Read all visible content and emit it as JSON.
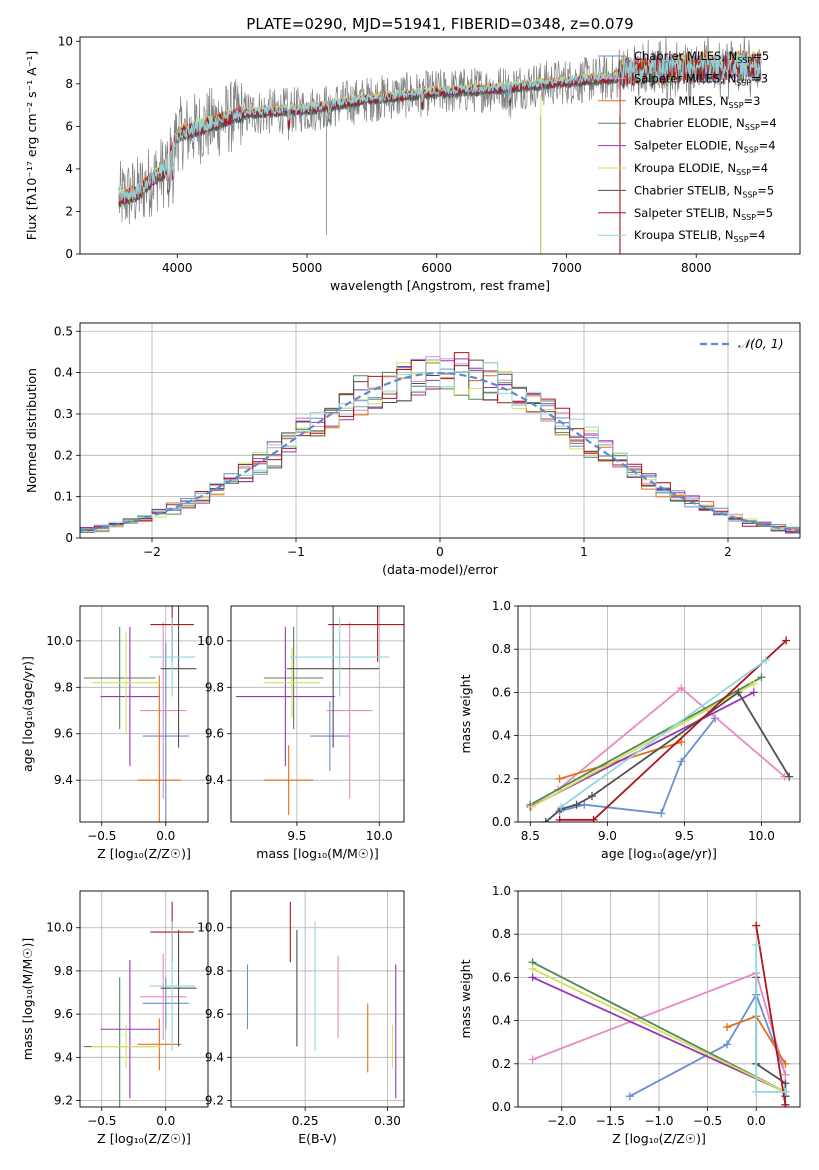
{
  "figure_title": "PLATE=0290, MJD=51941, FIBERID=0348, z=0.079",
  "models": [
    {
      "name": "Chabrier MILES",
      "color": "#6a8fd4",
      "nssp": "5"
    },
    {
      "name": "Salpeter MILES",
      "color": "#e88ac4",
      "nssp": "3"
    },
    {
      "name": "Kroupa MILES",
      "color": "#e0701c",
      "nssp": "3"
    },
    {
      "name": "Chabrier ELODIE",
      "color": "#4f8a55",
      "nssp": "4"
    },
    {
      "name": "Salpeter ELODIE",
      "color": "#9b35b8",
      "nssp": "4"
    },
    {
      "name": "Kroupa ELODIE",
      "color": "#d6e05a",
      "nssp": "4"
    },
    {
      "name": "Chabrier STELIB",
      "color": "#505050",
      "nssp": "5"
    },
    {
      "name": "Salpeter STELIB",
      "color": "#b0141c",
      "nssp": "5"
    },
    {
      "name": "Kroupa STELIB",
      "color": "#8fd8e0",
      "nssp": "4"
    }
  ],
  "chart_data": [
    {
      "type": "line",
      "id": "spectrum",
      "xlabel": "wavelength [Angstrom, rest frame]",
      "ylabel": "Flux [fλ10⁻¹⁷ erg cm⁻² s⁻¹ A⁻¹]",
      "xlim": [
        3250,
        8800
      ],
      "ylim": [
        0,
        10.2
      ],
      "xticks": [
        4000,
        5000,
        6000,
        7000,
        8000
      ],
      "yticks": [
        0,
        2,
        4,
        6,
        8,
        10
      ],
      "legend": "right",
      "continuum": {
        "x": [
          3550,
          3700,
          3800,
          3900,
          4000,
          4200,
          4500,
          5000,
          5500,
          6000,
          6500,
          7000,
          7400,
          8000,
          8500
        ],
        "y": [
          2.6,
          2.9,
          3.5,
          3.9,
          5.6,
          6.0,
          6.6,
          6.8,
          7.3,
          7.6,
          7.8,
          8.1,
          8.3,
          8.5,
          8.6
        ]
      }
    },
    {
      "type": "line",
      "id": "residuals",
      "xlabel": "(data-model)/error",
      "ylabel": "Normed distribution",
      "xlim": [
        -2.5,
        2.5
      ],
      "ylim": [
        0,
        0.52
      ],
      "xticks": [
        -2,
        -1,
        0,
        1,
        2
      ],
      "yticks": [
        0,
        0.1,
        0.2,
        0.3,
        0.4,
        0.5
      ],
      "legend_label": "𝒩(0, 1)",
      "legend": "top-right"
    },
    {
      "type": "scatter",
      "id": "age_vs_Z",
      "xlabel": "Z [log₁₀(Z/Z☉)]",
      "ylabel": "age  [log₁₀(age/yr)]",
      "xlim": [
        -0.67,
        0.33
      ],
      "ylim": [
        9.22,
        10.15
      ],
      "xticks": [
        -0.5,
        0.0
      ],
      "yticks": [
        9.4,
        9.6,
        9.8,
        10.0
      ],
      "points": [
        {
          "model": 0,
          "x": 0.0,
          "xe": 0.18,
          "y": 9.59,
          "ye": 0.4
        },
        {
          "model": 1,
          "x": -0.02,
          "xe": 0.18,
          "y": 9.7,
          "ye": 0.38
        },
        {
          "model": 2,
          "x": -0.05,
          "xe": 0.17,
          "y": 9.4,
          "ye": 0.45
        },
        {
          "model": 3,
          "x": -0.36,
          "xe": 0.28,
          "y": 9.84,
          "ye": 0.22
        },
        {
          "model": 4,
          "x": -0.28,
          "xe": 0.23,
          "y": 9.76,
          "ye": 0.3
        },
        {
          "model": 5,
          "x": -0.31,
          "xe": 0.27,
          "y": 9.82,
          "ye": 0.22
        },
        {
          "model": 6,
          "x": 0.1,
          "xe": 0.14,
          "y": 9.88,
          "ye": 0.34
        },
        {
          "model": 7,
          "x": 0.05,
          "xe": 0.17,
          "y": 10.07,
          "ye": 0.16
        },
        {
          "model": 8,
          "x": 0.05,
          "xe": 0.18,
          "y": 9.93,
          "ye": 0.17
        }
      ]
    },
    {
      "type": "scatter",
      "id": "age_vs_mass",
      "xlabel": "mass [log₁₀(M/M☉)]",
      "ylabel": "",
      "xlim": [
        9.1,
        10.15
      ],
      "ylim": [
        9.22,
        10.15
      ],
      "xticks": [
        9.5,
        10.0
      ],
      "yticks": [
        9.4,
        9.6,
        9.8,
        10.0
      ],
      "points": [
        {
          "model": 0,
          "x": 9.7,
          "xe": 0.12,
          "y": 9.59,
          "ye": 0.15
        },
        {
          "model": 1,
          "x": 9.82,
          "xe": 0.14,
          "y": 9.7,
          "ye": 0.38
        },
        {
          "model": 2,
          "x": 9.45,
          "xe": 0.15,
          "y": 9.4,
          "ye": 0.15
        },
        {
          "model": 3,
          "x": 9.48,
          "xe": 0.18,
          "y": 9.84,
          "ye": 0.22
        },
        {
          "model": 4,
          "x": 9.43,
          "xe": 0.3,
          "y": 9.76,
          "ye": 0.3
        },
        {
          "model": 5,
          "x": 9.47,
          "xe": 0.17,
          "y": 9.82,
          "ye": 0.15
        },
        {
          "model": 6,
          "x": 9.72,
          "xe": 0.28,
          "y": 9.88,
          "ye": 0.34
        },
        {
          "model": 7,
          "x": 9.99,
          "xe": 0.3,
          "y": 10.07,
          "ye": 0.16
        },
        {
          "model": 8,
          "x": 9.76,
          "xe": 0.3,
          "y": 9.93,
          "ye": 0.17
        }
      ]
    },
    {
      "type": "line",
      "id": "mass_weight_vs_age",
      "xlabel": "age  [log₁₀(age/yr)]",
      "ylabel": "mass weight",
      "xlim": [
        8.42,
        10.25
      ],
      "ylim": [
        0,
        1.0
      ],
      "xticks": [
        8.5,
        9.0,
        9.5,
        10.0
      ],
      "yticks": [
        0.0,
        0.2,
        0.4,
        0.6,
        0.8,
        1.0
      ],
      "series": [
        {
          "model": 0,
          "x": [
            8.69,
            8.85,
            9.35,
            9.48,
            9.7
          ],
          "y": [
            0.05,
            0.08,
            0.04,
            0.28,
            0.48
          ]
        },
        {
          "model": 1,
          "x": [
            8.68,
            9.48,
            10.15
          ],
          "y": [
            0.15,
            0.62,
            0.21
          ]
        },
        {
          "model": 2,
          "x": [
            8.69,
            9.48
          ],
          "y": [
            0.2,
            0.37
          ]
        },
        {
          "model": 3,
          "x": [
            8.5,
            10.0
          ],
          "y": [
            0.08,
            0.67
          ]
        },
        {
          "model": 4,
          "x": [
            8.5,
            9.95
          ],
          "y": [
            0.07,
            0.6
          ]
        },
        {
          "model": 5,
          "x": [
            8.51,
            9.95
          ],
          "y": [
            0.07,
            0.64
          ]
        },
        {
          "model": 6,
          "x": [
            8.6,
            8.7,
            8.8,
            8.9,
            9.85,
            10.18
          ],
          "y": [
            0.0,
            0.06,
            0.08,
            0.12,
            0.6,
            0.21
          ]
        },
        {
          "model": 7,
          "x": [
            8.69,
            8.91,
            10.16
          ],
          "y": [
            0.01,
            0.01,
            0.84
          ]
        },
        {
          "model": 8,
          "x": [
            8.7,
            10.03
          ],
          "y": [
            0.07,
            0.75
          ]
        }
      ]
    },
    {
      "type": "scatter",
      "id": "mass_vs_Z",
      "xlabel": "Z [log₁₀(Z/Z☉)]",
      "ylabel": "mass [log₁₀(M/M☉)]",
      "xlim": [
        -0.67,
        0.33
      ],
      "ylim": [
        9.17,
        10.17
      ],
      "xticks": [
        -0.5,
        0.0
      ],
      "yticks": [
        9.2,
        9.4,
        9.6,
        9.8,
        10.0
      ],
      "points": [
        {
          "model": 0,
          "x": 0.0,
          "xe": 0.18,
          "y": 9.65,
          "ye": 0.12
        },
        {
          "model": 1,
          "x": -0.02,
          "xe": 0.18,
          "y": 9.68,
          "ye": 0.2
        },
        {
          "model": 2,
          "x": -0.05,
          "xe": 0.17,
          "y": 9.46,
          "ye": 0.12
        },
        {
          "model": 3,
          "x": -0.36,
          "xe": 0.28,
          "y": 9.45,
          "ye": 0.32
        },
        {
          "model": 4,
          "x": -0.28,
          "xe": 0.23,
          "y": 9.53,
          "ye": 0.32
        },
        {
          "model": 5,
          "x": -0.31,
          "xe": 0.27,
          "y": 9.45,
          "ye": 0.1
        },
        {
          "model": 6,
          "x": 0.1,
          "xe": 0.14,
          "y": 9.72,
          "ye": 0.27
        },
        {
          "model": 7,
          "x": 0.05,
          "xe": 0.17,
          "y": 9.98,
          "ye": 0.14
        },
        {
          "model": 8,
          "x": 0.05,
          "xe": 0.18,
          "y": 9.73,
          "ye": 0.3
        }
      ]
    },
    {
      "type": "scatter",
      "id": "mass_vs_ebv",
      "xlabel": "E(B-V)",
      "ylabel": "",
      "xlim": [
        0.205,
        0.31
      ],
      "ylim": [
        9.17,
        10.17
      ],
      "xticks": [
        0.25,
        0.3
      ],
      "yticks": [
        9.2,
        9.4,
        9.6,
        9.8,
        10.0
      ],
      "points": [
        {
          "model": 0,
          "x": 0.215,
          "ye": 0.15,
          "y": 9.68
        },
        {
          "model": 1,
          "x": 0.27,
          "ye": 0.19,
          "y": 9.68
        },
        {
          "model": 2,
          "x": 0.288,
          "ye": 0.16,
          "y": 9.49
        },
        {
          "model": 4,
          "x": 0.305,
          "ye": 0.31,
          "y": 9.52
        },
        {
          "model": 5,
          "x": 0.303,
          "ye": 0.1,
          "y": 9.45
        },
        {
          "model": 6,
          "x": 0.245,
          "ye": 0.27,
          "y": 9.72
        },
        {
          "model": 7,
          "x": 0.241,
          "ye": 0.14,
          "y": 9.98
        },
        {
          "model": 8,
          "x": 0.256,
          "ye": 0.3,
          "y": 9.73
        }
      ]
    },
    {
      "type": "line",
      "id": "mass_weight_vs_Z",
      "xlabel": "Z [log₁₀(Z/Z☉)]",
      "ylabel": "mass weight",
      "xlim": [
        -2.45,
        0.45
      ],
      "ylim": [
        0,
        1.0
      ],
      "xticks": [
        -2.0,
        -1.5,
        -1.0,
        -0.5,
        0.0
      ],
      "yticks": [
        0.0,
        0.2,
        0.4,
        0.6,
        0.8,
        1.0
      ],
      "series": [
        {
          "model": 0,
          "x": [
            -1.3,
            -0.3,
            0.0,
            0.3
          ],
          "y": [
            0.05,
            0.29,
            0.52,
            0.15
          ]
        },
        {
          "model": 1,
          "x": [
            -2.3,
            0.0,
            0.3
          ],
          "y": [
            0.22,
            0.62,
            0.15
          ]
        },
        {
          "model": 2,
          "x": [
            -0.3,
            0.0,
            0.3
          ],
          "y": [
            0.37,
            0.42,
            0.2
          ]
        },
        {
          "model": 3,
          "x": [
            -2.3,
            0.3
          ],
          "y": [
            0.67,
            0.07
          ]
        },
        {
          "model": 4,
          "x": [
            -2.3,
            0.3
          ],
          "y": [
            0.6,
            0.07
          ]
        },
        {
          "model": 5,
          "x": [
            -2.3,
            0.3
          ],
          "y": [
            0.64,
            0.07
          ]
        },
        {
          "model": 6,
          "x": [
            0.0,
            0.0,
            0.3,
            0.3
          ],
          "y": [
            0.6,
            0.2,
            0.11,
            0.05
          ]
        },
        {
          "model": 7,
          "x": [
            0.0,
            0.3,
            0.3
          ],
          "y": [
            0.84,
            0.01,
            0.01
          ]
        },
        {
          "model": 8,
          "x": [
            0.0,
            0.0,
            0.3
          ],
          "y": [
            0.75,
            0.07,
            0.07
          ]
        }
      ]
    }
  ]
}
